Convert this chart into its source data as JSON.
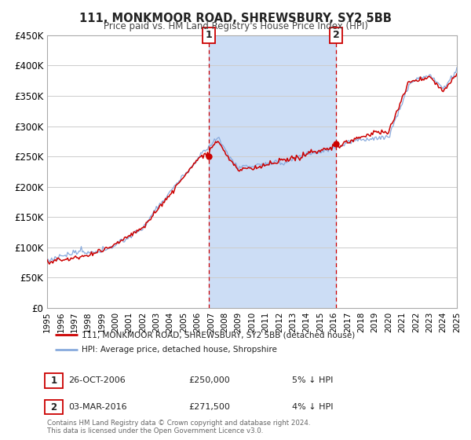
{
  "title": "111, MONKMOOR ROAD, SHREWSBURY, SY2 5BB",
  "subtitle": "Price paid vs. HM Land Registry's House Price Index (HPI)",
  "legend_label_red": "111, MONKMOOR ROAD, SHREWSBURY, SY2 5BB (detached house)",
  "legend_label_blue": "HPI: Average price, detached house, Shropshire",
  "marker1_date_num": 2006.82,
  "marker1_value": 250000,
  "marker1_label": "1",
  "marker1_text": "26-OCT-2006",
  "marker1_price": "£250,000",
  "marker1_hpi": "5% ↓ HPI",
  "marker2_date_num": 2016.17,
  "marker2_value": 271500,
  "marker2_label": "2",
  "marker2_text": "03-MAR-2016",
  "marker2_price": "£271,500",
  "marker2_hpi": "4% ↓ HPI",
  "ylabel_ticks": [
    0,
    50000,
    100000,
    150000,
    200000,
    250000,
    300000,
    350000,
    400000,
    450000
  ],
  "ylabel_labels": [
    "£0",
    "£50K",
    "£100K",
    "£150K",
    "£200K",
    "£250K",
    "£300K",
    "£350K",
    "£400K",
    "£450K"
  ],
  "xmin": 1995,
  "xmax": 2025,
  "ymin": 0,
  "ymax": 450000,
  "shading_start": 2006.82,
  "shading_end": 2016.17,
  "background_color": "#ffffff",
  "plot_bg_color": "#ffffff",
  "grid_color": "#cccccc",
  "red_color": "#cc0000",
  "blue_color": "#88aadd",
  "shade_color": "#ccddf5",
  "footnote": "Contains HM Land Registry data © Crown copyright and database right 2024.\nThis data is licensed under the Open Government Licence v3.0."
}
